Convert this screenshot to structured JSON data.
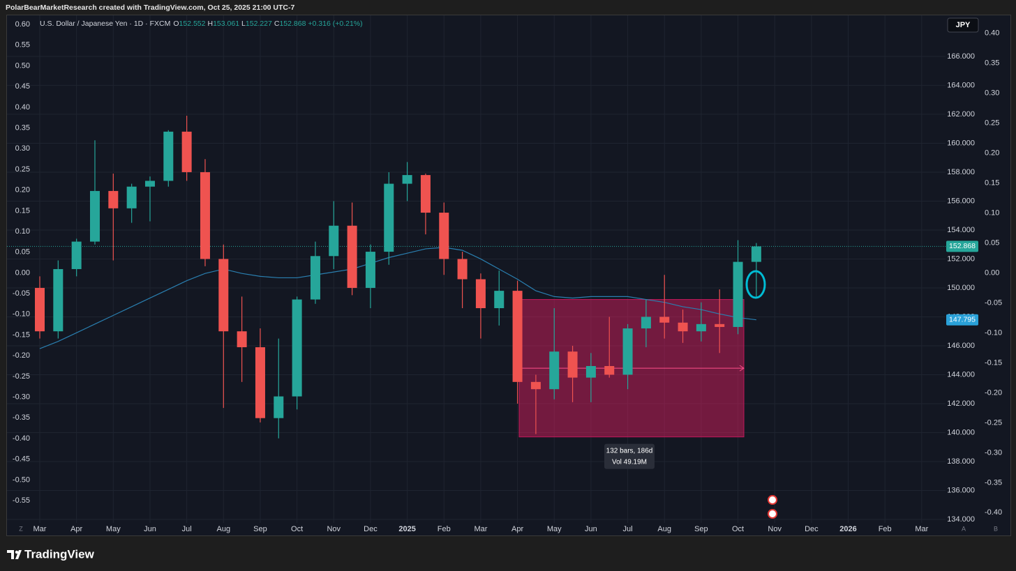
{
  "header": {
    "credit": "PolarBearMarketResearch created with TradingView.com, Oct 25, 2025 21:00 UTC-7"
  },
  "footer": {
    "brand": "TradingView"
  },
  "chart_data": {
    "type": "candlestick",
    "title": "U.S. Dollar / Japanese Yen · 1D · FXCM",
    "ohlc_legend": [
      {
        "label": "O",
        "value": 152.552
      },
      {
        "label": "H",
        "value": 153.061
      },
      {
        "label": "L",
        "value": 152.227
      },
      {
        "label": "C",
        "value": 152.868
      }
    ],
    "change": "+0.316 (+0.21%)",
    "currency": "JPY",
    "up_color": "#26a69a",
    "down_color": "#ef5350",
    "categories": [
      "Mar",
      null,
      "Apr",
      null,
      "May",
      null,
      "Jun",
      null,
      "Jul",
      null,
      "Aug",
      null,
      "Sep",
      null,
      "Oct",
      null,
      "Nov",
      null,
      "Dec",
      null,
      "2025",
      null,
      "Feb",
      null,
      "Mar",
      null,
      "Apr",
      null,
      "May",
      null,
      "Jun",
      null,
      "Jul",
      null,
      "Aug",
      null,
      "Sep",
      null,
      "Oct",
      null,
      "Nov",
      null,
      "Dec",
      null,
      "2026",
      null,
      "Feb",
      null,
      "Mar"
    ],
    "open": [
      150.0,
      147.0,
      151.3,
      153.2,
      156.7,
      155.5,
      157.0,
      157.4,
      160.8,
      158.0,
      152.0,
      147.0,
      145.9,
      141.0,
      142.5,
      149.2,
      152.2,
      154.3,
      150.0,
      152.5,
      157.2,
      157.8,
      155.2,
      152.0,
      150.6,
      148.6,
      149.8,
      143.5,
      143.0,
      145.6,
      143.8,
      144.6,
      144.0,
      147.2,
      148.0,
      147.6,
      147.0,
      147.5,
      147.3,
      151.8,
      null,
      null,
      null,
      null,
      null,
      null,
      null,
      null,
      null
    ],
    "high": [
      150.8,
      151.9,
      153.4,
      160.2,
      157.9,
      157.2,
      157.7,
      160.9,
      161.9,
      158.9,
      153.0,
      149.4,
      147.2,
      146.5,
      149.4,
      153.2,
      156.0,
      155.9,
      153.0,
      158.0,
      158.7,
      157.9,
      155.9,
      152.5,
      151.0,
      151.2,
      150.5,
      144.0,
      148.6,
      146.0,
      145.5,
      148.0,
      147.5,
      149.2,
      150.9,
      148.5,
      149.0,
      149.9,
      153.3,
      153.1,
      null,
      null,
      null,
      null,
      null,
      null,
      null,
      null,
      null
    ],
    "low": [
      146.5,
      146.5,
      150.8,
      153.0,
      151.9,
      154.5,
      154.6,
      157.0,
      157.4,
      151.5,
      141.7,
      143.5,
      140.7,
      139.6,
      141.6,
      148.9,
      151.3,
      149.5,
      148.6,
      151.6,
      156.0,
      153.7,
      150.9,
      148.6,
      146.5,
      147.4,
      142.0,
      139.9,
      142.3,
      142.1,
      142.1,
      143.8,
      143.0,
      145.9,
      146.5,
      146.2,
      146.3,
      145.5,
      146.8,
      149.4,
      null,
      null,
      null,
      null,
      null,
      null,
      null,
      null,
      null
    ],
    "close": [
      147.0,
      151.3,
      153.2,
      156.7,
      155.5,
      157.0,
      157.4,
      160.8,
      158.0,
      152.0,
      147.0,
      145.9,
      141.0,
      142.5,
      149.2,
      152.2,
      154.3,
      150.0,
      152.5,
      157.2,
      157.8,
      155.2,
      152.0,
      150.6,
      148.6,
      149.8,
      143.5,
      143.0,
      145.6,
      143.8,
      144.6,
      144.0,
      147.2,
      148.0,
      147.6,
      147.0,
      147.5,
      147.3,
      151.8,
      152.868,
      null,
      null,
      null,
      null,
      null,
      null,
      null,
      null,
      null
    ],
    "moving_average": {
      "color": "#2a7fb0",
      "values": [
        145.8,
        146.3,
        146.9,
        147.5,
        148.1,
        148.7,
        149.3,
        149.9,
        150.5,
        151.0,
        151.3,
        151.0,
        150.8,
        150.7,
        150.7,
        150.9,
        151.1,
        151.3,
        151.7,
        152.1,
        152.4,
        152.7,
        152.8,
        152.6,
        152.0,
        151.3,
        150.6,
        149.8,
        149.4,
        149.3,
        149.4,
        149.4,
        149.4,
        149.2,
        149.0,
        148.7,
        148.5,
        148.2,
        147.95,
        147.795,
        null,
        null,
        null,
        null,
        null,
        null,
        null,
        null,
        null
      ]
    },
    "last_price": 152.868,
    "ma_last": 147.795,
    "measure": {
      "top": 149.2,
      "bottom": 139.7,
      "bars_label": "132 bars, 186d",
      "volume_label": "Vol 49.19M"
    },
    "ylim": [
      132.89,
      168.84
    ],
    "yticks": [
      {
        "value": 134,
        "label": "134.000"
      },
      {
        "value": 136,
        "label": "136.000"
      },
      {
        "value": 138,
        "label": "138.000"
      },
      {
        "value": 140,
        "label": "140.000"
      },
      {
        "value": 142,
        "label": "142.000"
      },
      {
        "value": 144,
        "label": "144.000"
      },
      {
        "value": 146,
        "label": "146.000"
      },
      {
        "value": 148,
        "label": "148.000"
      },
      {
        "value": 150,
        "label": "150.000"
      },
      {
        "value": 152,
        "label": "152.000"
      },
      {
        "value": 154,
        "label": "154.000"
      },
      {
        "value": 156,
        "label": "156.000"
      },
      {
        "value": 158,
        "label": "158.000"
      },
      {
        "value": 160,
        "label": "160.000"
      },
      {
        "value": 162,
        "label": "162.000"
      },
      {
        "value": 164,
        "label": "164.000"
      },
      {
        "value": 166,
        "label": "166.000"
      }
    ],
    "left_axis": {
      "lim": [
        -0.634,
        0.622
      ],
      "ticks": [
        {
          "value": 0.6,
          "label": "0.60"
        },
        0.55,
        {
          "value": 0.5,
          "label": "0.50"
        },
        0.45,
        {
          "value": 0.4,
          "label": "0.40"
        },
        0.35,
        {
          "value": 0.3,
          "label": "0.30"
        },
        0.25,
        {
          "value": 0.2,
          "label": "0.20"
        },
        0.15,
        {
          "value": 0.1,
          "label": "0.10"
        },
        0.05,
        {
          "value": 0,
          "label": "0.00"
        },
        -0.05,
        {
          "value": -0.1,
          "label": "-0.10"
        },
        -0.15,
        {
          "value": -0.2,
          "label": "-0.20"
        },
        -0.25,
        {
          "value": -0.3,
          "label": "-0.30"
        },
        -0.35,
        {
          "value": -0.4,
          "label": "-0.40"
        },
        -0.45,
        {
          "value": -0.5,
          "label": "-0.50"
        },
        -0.55
      ]
    },
    "inner_right_axis": {
      "lim": [
        -0.438,
        0.43
      ],
      "ticks": [
        {
          "value": 0.4,
          "label": "0.40"
        },
        0.35,
        {
          "value": 0.3,
          "label": "0.30"
        },
        0.25,
        {
          "value": 0.2,
          "label": "0.20"
        },
        0.15,
        {
          "value": 0.1,
          "label": "0.10"
        },
        0.05,
        {
          "value": 0,
          "label": "0.00"
        },
        -0.05,
        {
          "value": -0.1,
          "label": "-0.10"
        },
        -0.15,
        {
          "value": -0.2,
          "label": "-0.20"
        },
        -0.25,
        {
          "value": -0.3,
          "label": "-0.30"
        },
        -0.35,
        {
          "value": -0.4,
          "label": "-0.40"
        }
      ]
    },
    "corner_labels": [
      "Z",
      "A",
      "B"
    ],
    "grid": true
  }
}
